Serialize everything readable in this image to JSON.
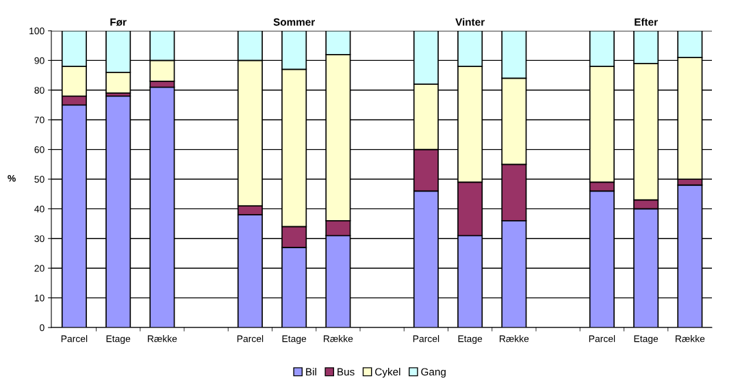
{
  "chart_data": {
    "type": "bar",
    "stacked": true,
    "ylabel": "%",
    "categories": [
      "Parcel",
      "Etage",
      "Række",
      null,
      "Parcel",
      "Etage",
      "Række",
      null,
      "Parcel",
      "Etage",
      "Række",
      null,
      "Parcel",
      "Etage",
      "Række"
    ],
    "series": [
      {
        "name": "Bil",
        "color": "#9999ff",
        "values": [
          75,
          78,
          81,
          null,
          38,
          27,
          31,
          null,
          46,
          31,
          36,
          null,
          46,
          40,
          48
        ]
      },
      {
        "name": "Bus",
        "color": "#993366",
        "values": [
          3,
          1,
          2,
          null,
          3,
          7,
          5,
          null,
          14,
          18,
          19,
          null,
          3,
          3,
          2
        ]
      },
      {
        "name": "Cykel",
        "color": "#ffffcc",
        "values": [
          10,
          7,
          7,
          null,
          49,
          53,
          56,
          null,
          22,
          39,
          29,
          null,
          39,
          46,
          41
        ]
      },
      {
        "name": "Gang",
        "color": "#ccffff",
        "values": [
          12,
          14,
          10,
          null,
          10,
          13,
          8,
          null,
          18,
          12,
          16,
          null,
          12,
          11,
          9
        ]
      }
    ],
    "annotations": [
      "Før",
      "Sommer",
      "Vinter",
      "Efter"
    ],
    "ylim": [
      0,
      100
    ],
    "yticks": [
      0,
      10,
      20,
      30,
      40,
      50,
      60,
      70,
      80,
      90,
      100
    ],
    "grid": "y",
    "legend": "bottom"
  }
}
